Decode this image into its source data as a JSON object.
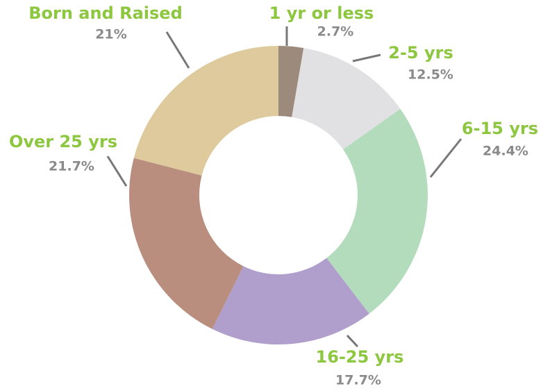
{
  "chart_data": {
    "type": "donut",
    "categories": [
      "1 yr or less",
      "2-5 yrs",
      "6-15 yrs",
      "16-25 yrs",
      "Over 25 yrs",
      "Born and Raised"
    ],
    "values": [
      2.7,
      12.5,
      24.4,
      17.7,
      21.7,
      21
    ],
    "value_labels": [
      "2.7%",
      "12.5%",
      "24.4%",
      "17.7%",
      "21.7%",
      "21%"
    ],
    "colors": [
      "#9c8b7c",
      "#e1e1e3",
      "#b3dcbc",
      "#b09fcc",
      "#b98e7e",
      "#deca9c"
    ]
  }
}
